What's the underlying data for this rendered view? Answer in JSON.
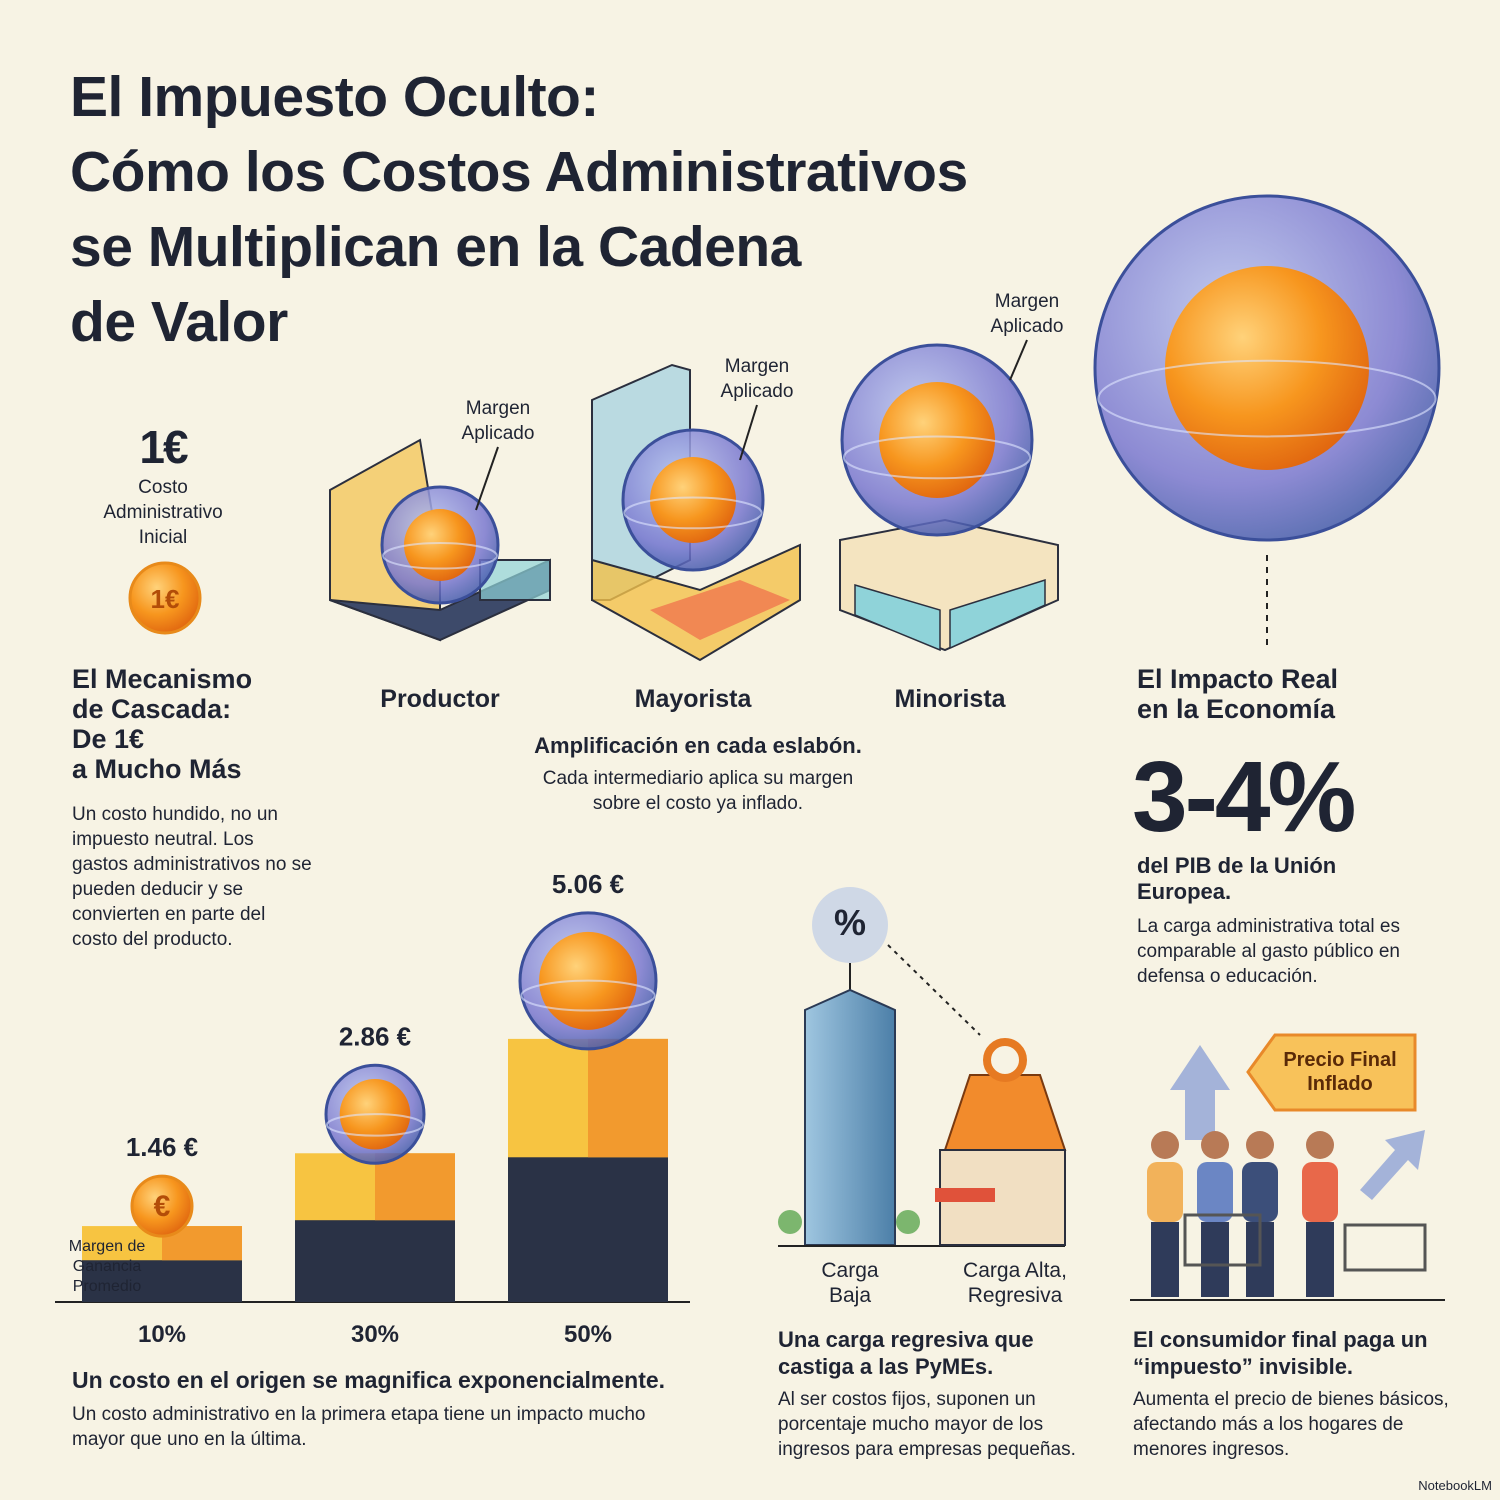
{
  "title": [
    "El Impuesto Oculto:",
    "Cómo los Costos Administrativos",
    "se Multiplican en la Cadena",
    "de Valor"
  ],
  "initial": {
    "amount": "1€",
    "label": [
      "Costo",
      "Administrativo",
      "Inicial"
    ],
    "coin": "1€"
  },
  "mechanism": {
    "heading": [
      "El Mecanismo",
      "de Cascada:",
      "De 1€",
      "a Mucho Más"
    ],
    "body": "Un costo hundido, no un impuesto neutral. Los gastos administrativos no se pueden deducir y se convierten en parte del costo del producto."
  },
  "chain": {
    "margin_label": [
      "Margen",
      "Aplicado"
    ],
    "stages": [
      "Productor",
      "Mayorista",
      "Minorista"
    ],
    "heading": "Amplificación en cada eslabón.",
    "body": "Cada intermediario aplica su margen sobre el costo ya inflado."
  },
  "impact": {
    "heading": [
      "El Impacto Real",
      "en la Economía"
    ],
    "figure": "3-4%",
    "caption": "del PIB de la Unión Europea.",
    "body": "La carga administrativa total es comparable al gasto público en defensa o educación."
  },
  "cascade": {
    "margin_caption": [
      "Margen de",
      "Ganancia",
      "Promedio"
    ],
    "categories": [
      "10%",
      "30%",
      "50%"
    ],
    "values": [
      1.46,
      2.86,
      5.06
    ],
    "value_labels": [
      "1.46 €",
      "2.86 €",
      "5.06 €"
    ],
    "coin": "€",
    "heading": "Un costo en el origen se magnifica exponencialmente.",
    "body": "Un costo administrativo en la primera etapa tiene un impacto mucho mayor que uno en la última."
  },
  "sme": {
    "symbol": "%",
    "labels": [
      [
        "Carga",
        "Baja"
      ],
      [
        "Carga Alta,",
        "Regresiva"
      ]
    ],
    "heading": "Una carga regresiva que castiga a las PyMEs.",
    "body": "Al ser costos fijos, suponen un porcentaje mucho mayor de los ingresos para empresas pequeñas."
  },
  "consumer": {
    "tag": [
      "Precio Final",
      "Inflado"
    ],
    "heading": "El consumidor final paga un “impuesto” invisible.",
    "body": "Aumenta el precio de bienes básicos, afectando más a los hogares de menores ingresos."
  },
  "footer": "NotebookLM"
}
